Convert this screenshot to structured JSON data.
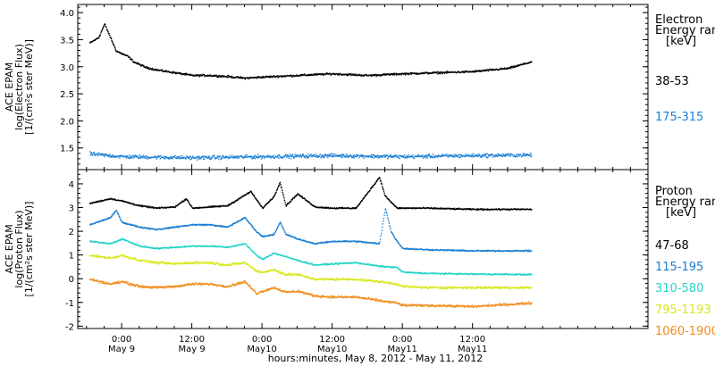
{
  "chart_data": [
    {
      "type": "scatter",
      "panel": "electron",
      "ylabel_lines": [
        "ACE EPAM",
        "log(Electron Flux)",
        "[1/(cm²s ster MeV)]"
      ],
      "ylim": [
        1.1,
        4.15
      ],
      "yticks": [
        "1.5",
        "2.0",
        "2.5",
        "3.0",
        "3.5",
        "4.0"
      ],
      "ytick_values": [
        1.5,
        2.0,
        2.5,
        3.0,
        3.5,
        4.0
      ],
      "legend_title_lines": [
        "Electron",
        "Energy ran",
        "[keV]"
      ],
      "series": [
        {
          "name": "38-53",
          "color": "#000000",
          "x": [
            -5.5,
            -4,
            -3,
            -2,
            -1,
            0,
            1,
            2,
            3,
            4,
            6,
            9,
            12,
            15,
            18,
            21,
            24,
            30,
            36,
            42,
            48,
            54,
            60,
            66,
            70
          ],
          "y": [
            3.45,
            3.55,
            3.8,
            3.55,
            3.3,
            3.25,
            3.2,
            3.1,
            3.05,
            3.0,
            2.95,
            2.9,
            2.85,
            2.85,
            2.83,
            2.8,
            2.82,
            2.85,
            2.88,
            2.85,
            2.88,
            2.9,
            2.92,
            2.98,
            3.1
          ]
        },
        {
          "name": "175-315",
          "color": "#1a7fd4",
          "x": [
            -5.5,
            0,
            12,
            24,
            36,
            48,
            60,
            70
          ],
          "y": [
            1.4,
            1.35,
            1.33,
            1.35,
            1.37,
            1.35,
            1.37,
            1.38
          ]
        }
      ]
    },
    {
      "type": "scatter",
      "panel": "proton",
      "ylabel_lines": [
        "ACE EPAM",
        "log(Proton Flux)",
        "[1/(cm²s ster MeV)]"
      ],
      "ylim": [
        -2.1,
        4.6
      ],
      "yticks": [
        "-2",
        "-1",
        "0",
        "1",
        "2",
        "3",
        "4"
      ],
      "ytick_values": [
        -2,
        -1,
        0,
        1,
        2,
        3,
        4
      ],
      "legend_title_lines": [
        "Proton",
        "Energy ran",
        "[keV]"
      ],
      "series": [
        {
          "name": "47-68",
          "color": "#000000",
          "x": [
            -5.5,
            -2,
            0,
            3,
            6,
            9,
            11,
            12,
            15,
            18,
            22,
            24,
            26,
            27,
            28,
            30,
            33,
            36,
            40,
            44,
            45,
            47,
            52,
            60,
            70
          ],
          "y": [
            3.2,
            3.4,
            3.3,
            3.1,
            3.0,
            3.05,
            3.4,
            3.0,
            3.05,
            3.1,
            3.7,
            3.0,
            3.5,
            4.1,
            3.1,
            3.6,
            3.05,
            3.0,
            3.0,
            4.3,
            3.5,
            3.0,
            3.0,
            2.95,
            2.95
          ]
        },
        {
          "name": "115-195",
          "color": "#1a7fd4",
          "x": [
            -5.5,
            -2,
            -1,
            0,
            3,
            6,
            9,
            12,
            15,
            18,
            21,
            23,
            24,
            26,
            27,
            28,
            30,
            33,
            36,
            40,
            44,
            45,
            46,
            47,
            48,
            52,
            60,
            70
          ],
          "y": [
            2.3,
            2.6,
            2.9,
            2.4,
            2.2,
            2.1,
            2.2,
            2.3,
            2.3,
            2.2,
            2.6,
            2.0,
            1.8,
            1.9,
            2.4,
            1.9,
            1.7,
            1.5,
            1.6,
            1.6,
            1.5,
            3.0,
            2.0,
            1.6,
            1.3,
            1.25,
            1.2,
            1.2
          ]
        },
        {
          "name": "310-580",
          "color": "#22d4c8",
          "x": [
            -5.5,
            -2,
            0,
            3,
            6,
            9,
            12,
            15,
            18,
            21,
            23,
            24,
            26,
            28,
            30,
            33,
            36,
            40,
            44,
            47,
            48,
            52,
            60,
            70
          ],
          "y": [
            1.6,
            1.5,
            1.7,
            1.4,
            1.3,
            1.35,
            1.4,
            1.4,
            1.35,
            1.5,
            1.0,
            0.85,
            1.1,
            0.95,
            0.8,
            0.6,
            0.65,
            0.7,
            0.55,
            0.5,
            0.3,
            0.25,
            0.22,
            0.2
          ]
        },
        {
          "name": "795-1193",
          "color": "#d8e81a",
          "x": [
            -5.5,
            -2,
            0,
            3,
            6,
            9,
            12,
            15,
            18,
            21,
            23,
            24,
            26,
            28,
            30,
            33,
            36,
            40,
            44,
            47,
            48,
            52,
            60,
            70
          ],
          "y": [
            1.0,
            0.9,
            1.0,
            0.8,
            0.7,
            0.65,
            0.7,
            0.7,
            0.6,
            0.7,
            0.35,
            0.3,
            0.4,
            0.2,
            0.2,
            0.0,
            0.0,
            0.0,
            -0.1,
            -0.2,
            -0.3,
            -0.35,
            -0.35,
            -0.35
          ]
        },
        {
          "name": "1060-1900",
          "color": "#f08c1a",
          "x": [
            -5.5,
            -2,
            0,
            3,
            6,
            9,
            12,
            15,
            18,
            21,
            23,
            24,
            26,
            28,
            30,
            33,
            36,
            40,
            44,
            47,
            48,
            52,
            60,
            70
          ],
          "y": [
            0.0,
            -0.2,
            -0.1,
            -0.3,
            -0.35,
            -0.3,
            -0.2,
            -0.2,
            -0.3,
            -0.1,
            -0.6,
            -0.5,
            -0.35,
            -0.55,
            -0.5,
            -0.7,
            -0.75,
            -0.75,
            -0.9,
            -1.0,
            -1.1,
            -1.1,
            -1.15,
            -1.0
          ]
        }
      ]
    }
  ],
  "x_axis": {
    "xlim": [
      -7.5,
      90
    ],
    "ticks": [
      {
        "value": 0,
        "line1": "0:00",
        "line2": "May 9"
      },
      {
        "value": 12,
        "line1": "12:00",
        "line2": "May 9"
      },
      {
        "value": 24,
        "line1": "0:00",
        "line2": "May10"
      },
      {
        "value": 36,
        "line1": "12:00",
        "line2": "May10"
      },
      {
        "value": 48,
        "line1": "0:00",
        "line2": "May11"
      },
      {
        "value": 60,
        "line1": "12:00",
        "line2": "May11"
      }
    ],
    "minor_every": 3,
    "xlabel": "hours:minutes,  May  8, 2012 - May 11, 2012"
  }
}
